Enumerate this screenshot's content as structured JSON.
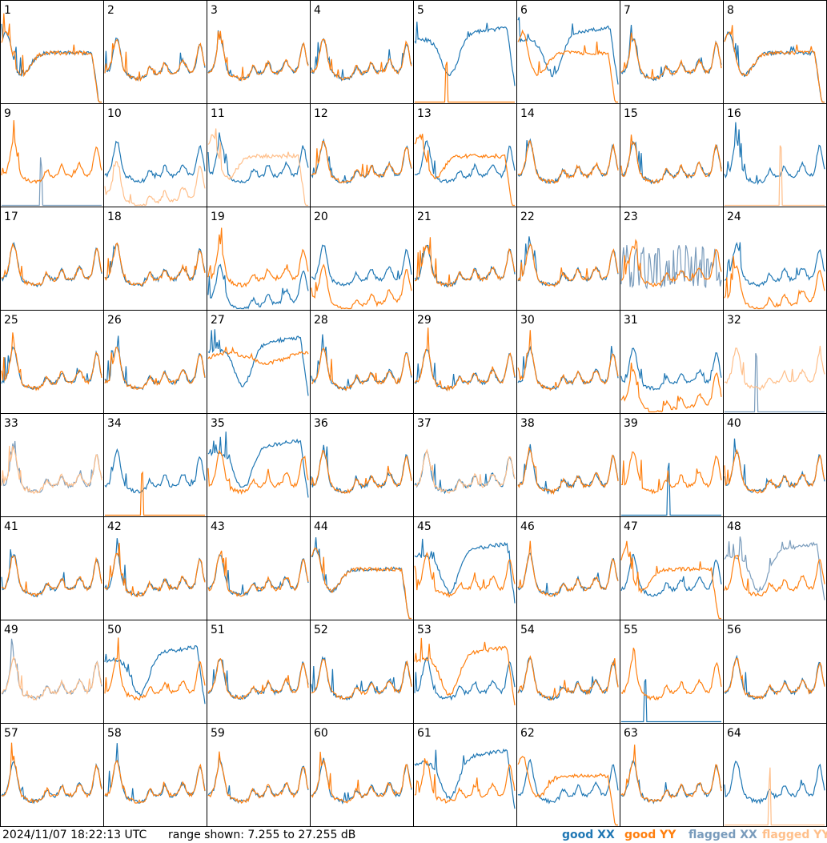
{
  "footer": {
    "timestamp": "2024/11/07 18:22:13 UTC",
    "range": "range shown: 7.255 to 27.255 dB"
  },
  "legend": [
    {
      "label": "good XX",
      "color": "#1f77b4"
    },
    {
      "label": "good YY",
      "color": "#ff7f0e"
    },
    {
      "label": "flagged XX",
      "color": "#7a9cbc"
    },
    {
      "label": "flagged YY",
      "color": "#ffbf8a"
    }
  ],
  "chart_data": {
    "type": "line",
    "grid": {
      "rows": 8,
      "cols": 8
    },
    "ylim_db": [
      7.255,
      27.255
    ],
    "panels": [
      {
        "id": 1,
        "xx": "good",
        "yy": "good",
        "xx_shape": "droop",
        "yy_shape": "droop"
      },
      {
        "id": 2,
        "xx": "good",
        "yy": "good",
        "xx_shape": "normal",
        "yy_shape": "normal"
      },
      {
        "id": 3,
        "xx": "good",
        "yy": "good",
        "xx_shape": "normal",
        "yy_shape": "normal"
      },
      {
        "id": 4,
        "xx": "good",
        "yy": "good",
        "xx_shape": "normal",
        "yy_shape": "normal"
      },
      {
        "id": 5,
        "xx": "good",
        "yy": "good",
        "xx_shape": "dip",
        "yy_shape": "dead"
      },
      {
        "id": 6,
        "xx": "good",
        "yy": "good",
        "xx_shape": "dip",
        "yy_shape": "droop"
      },
      {
        "id": 7,
        "xx": "good",
        "yy": "good",
        "xx_shape": "normal",
        "yy_shape": "normal"
      },
      {
        "id": 8,
        "xx": "good",
        "yy": "good",
        "xx_shape": "droop",
        "yy_shape": "droop"
      },
      {
        "id": 9,
        "xx": "flagged",
        "yy": "good",
        "xx_shape": "dead",
        "yy_shape": "normal"
      },
      {
        "id": 10,
        "xx": "good",
        "yy": "flagged",
        "xx_shape": "normal",
        "yy_shape": "low"
      },
      {
        "id": 11,
        "xx": "good",
        "yy": "flagged",
        "xx_shape": "normal",
        "yy_shape": "droop"
      },
      {
        "id": 12,
        "xx": "good",
        "yy": "good",
        "xx_shape": "normal",
        "yy_shape": "normal"
      },
      {
        "id": 13,
        "xx": "good",
        "yy": "good",
        "xx_shape": "normal",
        "yy_shape": "droop"
      },
      {
        "id": 14,
        "xx": "good",
        "yy": "good",
        "xx_shape": "normal",
        "yy_shape": "normal"
      },
      {
        "id": 15,
        "xx": "good",
        "yy": "good",
        "xx_shape": "normal",
        "yy_shape": "normal"
      },
      {
        "id": 16,
        "xx": "good",
        "yy": "flagged",
        "xx_shape": "normal",
        "yy_shape": "dead"
      },
      {
        "id": 17,
        "xx": "good",
        "yy": "good",
        "xx_shape": "normal",
        "yy_shape": "normal"
      },
      {
        "id": 18,
        "xx": "good",
        "yy": "good",
        "xx_shape": "normal",
        "yy_shape": "normal"
      },
      {
        "id": 19,
        "xx": "good",
        "yy": "good",
        "xx_shape": "low",
        "yy_shape": "normal"
      },
      {
        "id": 20,
        "xx": "good",
        "yy": "good",
        "xx_shape": "normal",
        "yy_shape": "low"
      },
      {
        "id": 21,
        "xx": "good",
        "yy": "good",
        "xx_shape": "normal",
        "yy_shape": "normal"
      },
      {
        "id": 22,
        "xx": "good",
        "yy": "good",
        "xx_shape": "normal",
        "yy_shape": "normal"
      },
      {
        "id": 23,
        "xx": "flagged",
        "yy": "good",
        "xx_shape": "noisy",
        "yy_shape": "normal"
      },
      {
        "id": 24,
        "xx": "good",
        "yy": "good",
        "xx_shape": "normal",
        "yy_shape": "low"
      },
      {
        "id": 25,
        "xx": "good",
        "yy": "good",
        "xx_shape": "normal",
        "yy_shape": "normal"
      },
      {
        "id": 26,
        "xx": "good",
        "yy": "good",
        "xx_shape": "normal",
        "yy_shape": "normal"
      },
      {
        "id": 27,
        "xx": "good",
        "yy": "good",
        "xx_shape": "dip",
        "yy_shape": "flat"
      },
      {
        "id": 28,
        "xx": "good",
        "yy": "good",
        "xx_shape": "normal",
        "yy_shape": "normal"
      },
      {
        "id": 29,
        "xx": "good",
        "yy": "good",
        "xx_shape": "normal",
        "yy_shape": "normal"
      },
      {
        "id": 30,
        "xx": "good",
        "yy": "good",
        "xx_shape": "normal",
        "yy_shape": "normal"
      },
      {
        "id": 31,
        "xx": "good",
        "yy": "good",
        "xx_shape": "normal",
        "yy_shape": "low"
      },
      {
        "id": 32,
        "xx": "flagged",
        "yy": "flagged",
        "xx_shape": "dead",
        "yy_shape": "normal"
      },
      {
        "id": 33,
        "xx": "flagged",
        "yy": "flagged",
        "xx_shape": "normal",
        "yy_shape": "normal"
      },
      {
        "id": 34,
        "xx": "good",
        "yy": "good",
        "xx_shape": "normal",
        "yy_shape": "dead"
      },
      {
        "id": 35,
        "xx": "good",
        "yy": "good",
        "xx_shape": "dip",
        "yy_shape": "normal"
      },
      {
        "id": 36,
        "xx": "good",
        "yy": "good",
        "xx_shape": "normal",
        "yy_shape": "normal"
      },
      {
        "id": 37,
        "xx": "good",
        "yy": "flagged",
        "xx_shape": "normal",
        "yy_shape": "normal"
      },
      {
        "id": 38,
        "xx": "good",
        "yy": "good",
        "xx_shape": "normal",
        "yy_shape": "normal"
      },
      {
        "id": 39,
        "xx": "good",
        "yy": "good",
        "xx_shape": "dead",
        "yy_shape": "normal"
      },
      {
        "id": 40,
        "xx": "good",
        "yy": "good",
        "xx_shape": "normal",
        "yy_shape": "normal"
      },
      {
        "id": 41,
        "xx": "good",
        "yy": "good",
        "xx_shape": "normal",
        "yy_shape": "normal"
      },
      {
        "id": 42,
        "xx": "good",
        "yy": "good",
        "xx_shape": "normal",
        "yy_shape": "normal"
      },
      {
        "id": 43,
        "xx": "good",
        "yy": "good",
        "xx_shape": "normal",
        "yy_shape": "normal"
      },
      {
        "id": 44,
        "xx": "good",
        "yy": "good",
        "xx_shape": "droop",
        "yy_shape": "droop"
      },
      {
        "id": 45,
        "xx": "good",
        "yy": "good",
        "xx_shape": "dip",
        "yy_shape": "normal"
      },
      {
        "id": 46,
        "xx": "good",
        "yy": "good",
        "xx_shape": "normal",
        "yy_shape": "normal"
      },
      {
        "id": 47,
        "xx": "good",
        "yy": "good",
        "xx_shape": "normal",
        "yy_shape": "droop"
      },
      {
        "id": 48,
        "xx": "flagged",
        "yy": "good",
        "xx_shape": "dip",
        "yy_shape": "normal"
      },
      {
        "id": 49,
        "xx": "flagged",
        "yy": "flagged",
        "xx_shape": "normal",
        "yy_shape": "normal"
      },
      {
        "id": 50,
        "xx": "good",
        "yy": "good",
        "xx_shape": "dip",
        "yy_shape": "normal"
      },
      {
        "id": 51,
        "xx": "good",
        "yy": "good",
        "xx_shape": "normal",
        "yy_shape": "normal"
      },
      {
        "id": 52,
        "xx": "good",
        "yy": "good",
        "xx_shape": "normal",
        "yy_shape": "normal"
      },
      {
        "id": 53,
        "xx": "good",
        "yy": "good",
        "xx_shape": "normal",
        "yy_shape": "dip"
      },
      {
        "id": 54,
        "xx": "good",
        "yy": "good",
        "xx_shape": "normal",
        "yy_shape": "normal"
      },
      {
        "id": 55,
        "xx": "good",
        "yy": "good",
        "xx_shape": "dead",
        "yy_shape": "normal"
      },
      {
        "id": 56,
        "xx": "good",
        "yy": "good",
        "xx_shape": "normal",
        "yy_shape": "normal"
      },
      {
        "id": 57,
        "xx": "good",
        "yy": "good",
        "xx_shape": "normal",
        "yy_shape": "normal"
      },
      {
        "id": 58,
        "xx": "good",
        "yy": "good",
        "xx_shape": "normal",
        "yy_shape": "normal"
      },
      {
        "id": 59,
        "xx": "good",
        "yy": "good",
        "xx_shape": "normal",
        "yy_shape": "normal"
      },
      {
        "id": 60,
        "xx": "good",
        "yy": "good",
        "xx_shape": "normal",
        "yy_shape": "normal"
      },
      {
        "id": 61,
        "xx": "good",
        "yy": "good",
        "xx_shape": "dip",
        "yy_shape": "normal"
      },
      {
        "id": 62,
        "xx": "good",
        "yy": "good",
        "xx_shape": "normal",
        "yy_shape": "droop"
      },
      {
        "id": 63,
        "xx": "good",
        "yy": "good",
        "xx_shape": "normal",
        "yy_shape": "normal"
      },
      {
        "id": 64,
        "xx": "good",
        "yy": "flagged",
        "xx_shape": "normal",
        "yy_shape": "dead"
      }
    ]
  }
}
